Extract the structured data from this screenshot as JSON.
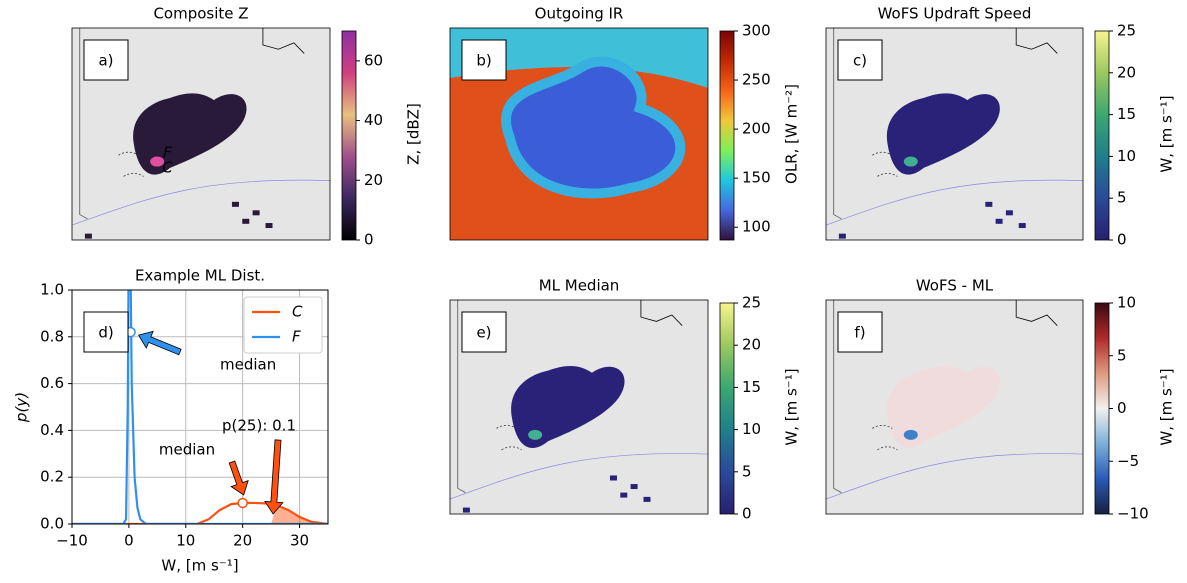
{
  "chart_data": [
    {
      "type": "map",
      "title": "Composite Z",
      "panel_label": "a)",
      "storm_labels": [
        "F",
        "C"
      ],
      "colorbar_label": "Z, [dBZ]",
      "ylim": [
        0,
        70
      ],
      "yticks": [
        0,
        20,
        40,
        60
      ],
      "colormap": [
        "#000000",
        "#3c2860",
        "#a0508a",
        "#e8c080",
        "#d04080",
        "#9030a0"
      ]
    },
    {
      "type": "map",
      "title": "Outgoing IR",
      "panel_label": "b)",
      "colorbar_label": "OLR, [W m⁻²]",
      "ylim": [
        87,
        300
      ],
      "yticks": [
        100,
        150,
        200,
        250,
        300
      ],
      "colormap": [
        "#30123b",
        "#4668e0",
        "#1fc8de",
        "#7ef058",
        "#f0c83a",
        "#f5631a",
        "#c02a04",
        "#7a0403"
      ]
    },
    {
      "type": "map",
      "title": "WoFS Updraft Speed",
      "panel_label": "c)",
      "colorbar_label": "W, [m s⁻¹]",
      "ylim": [
        0,
        25
      ],
      "yticks": [
        0,
        5,
        10,
        15,
        20,
        25
      ],
      "colormap": [
        "#28206e",
        "#2a4a9a",
        "#1f7f8c",
        "#3aa870",
        "#9cc860",
        "#f6f48e"
      ]
    },
    {
      "type": "line",
      "title": "Example ML Dist.",
      "panel_label": "d)",
      "xlabel": "W, [m s⁻¹]",
      "ylabel": "p(y)",
      "x": [
        -10,
        -1,
        -0.5,
        -0.2,
        0,
        0.2,
        0.5,
        1,
        1.5,
        2,
        3,
        5,
        10,
        12,
        14,
        16,
        18,
        20,
        22,
        24,
        26,
        28,
        30,
        32,
        35
      ],
      "series": [
        {
          "name": "C",
          "color": "#ff5010",
          "values": [
            0,
            0,
            0,
            0,
            0,
            0,
            0,
            0,
            0,
            0,
            0,
            0,
            0,
            0,
            0.02,
            0.06,
            0.085,
            0.09,
            0.09,
            0.088,
            0.08,
            0.06,
            0.03,
            0.01,
            0
          ],
          "median_x": 20,
          "median_y": 0.09
        },
        {
          "name": "F",
          "color": "#3090f0",
          "values": [
            0,
            0,
            0.02,
            0.5,
            1.3,
            1.3,
            0.6,
            0.2,
            0.07,
            0.02,
            0,
            0,
            0,
            0,
            0,
            0,
            0,
            0,
            0,
            0,
            0,
            0,
            0,
            0,
            0
          ],
          "median_x": 0.3,
          "median_y": 0.82
        }
      ],
      "shaded_above": 25,
      "annotations": [
        "median",
        "median",
        "p(25): 0.1"
      ],
      "xlim": [
        -10,
        35
      ],
      "xticks": [
        {
          "value": -10,
          "label": "−10"
        },
        0,
        10,
        20,
        30
      ],
      "ylim": [
        0,
        1
      ],
      "yticks": [
        {
          "value": 0,
          "label": "0.0"
        },
        {
          "value": 0.2,
          "label": "0.2"
        },
        {
          "value": 0.4,
          "label": "0.4"
        },
        {
          "value": 0.6,
          "label": "0.6"
        },
        {
          "value": 0.8,
          "label": "0.8"
        },
        {
          "value": 1,
          "label": "1.0"
        }
      ],
      "grid": true,
      "legend": "upper right"
    },
    {
      "type": "map",
      "title": "ML Median",
      "panel_label": "e)",
      "colorbar_label": "W, [m s⁻¹]",
      "ylim": [
        0,
        25
      ],
      "yticks": [
        0,
        5,
        10,
        15,
        20,
        25
      ],
      "colormap": [
        "#28206e",
        "#2a4a9a",
        "#1f7f8c",
        "#3aa870",
        "#9cc860",
        "#f6f48e"
      ]
    },
    {
      "type": "map",
      "title": "WoFS - ML",
      "panel_label": "f)",
      "colorbar_label": "W, [m s⁻¹]",
      "ylim": [
        -10,
        10
      ],
      "yticks": [
        {
          "value": -10,
          "label": "−10"
        },
        {
          "value": -5,
          "label": "−5"
        },
        0,
        5,
        10
      ],
      "colormap": [
        "#17203f",
        "#2a5ab8",
        "#7ab0d8",
        "#f2f0ef",
        "#e09a80",
        "#b02a2a",
        "#3c0912"
      ]
    }
  ]
}
